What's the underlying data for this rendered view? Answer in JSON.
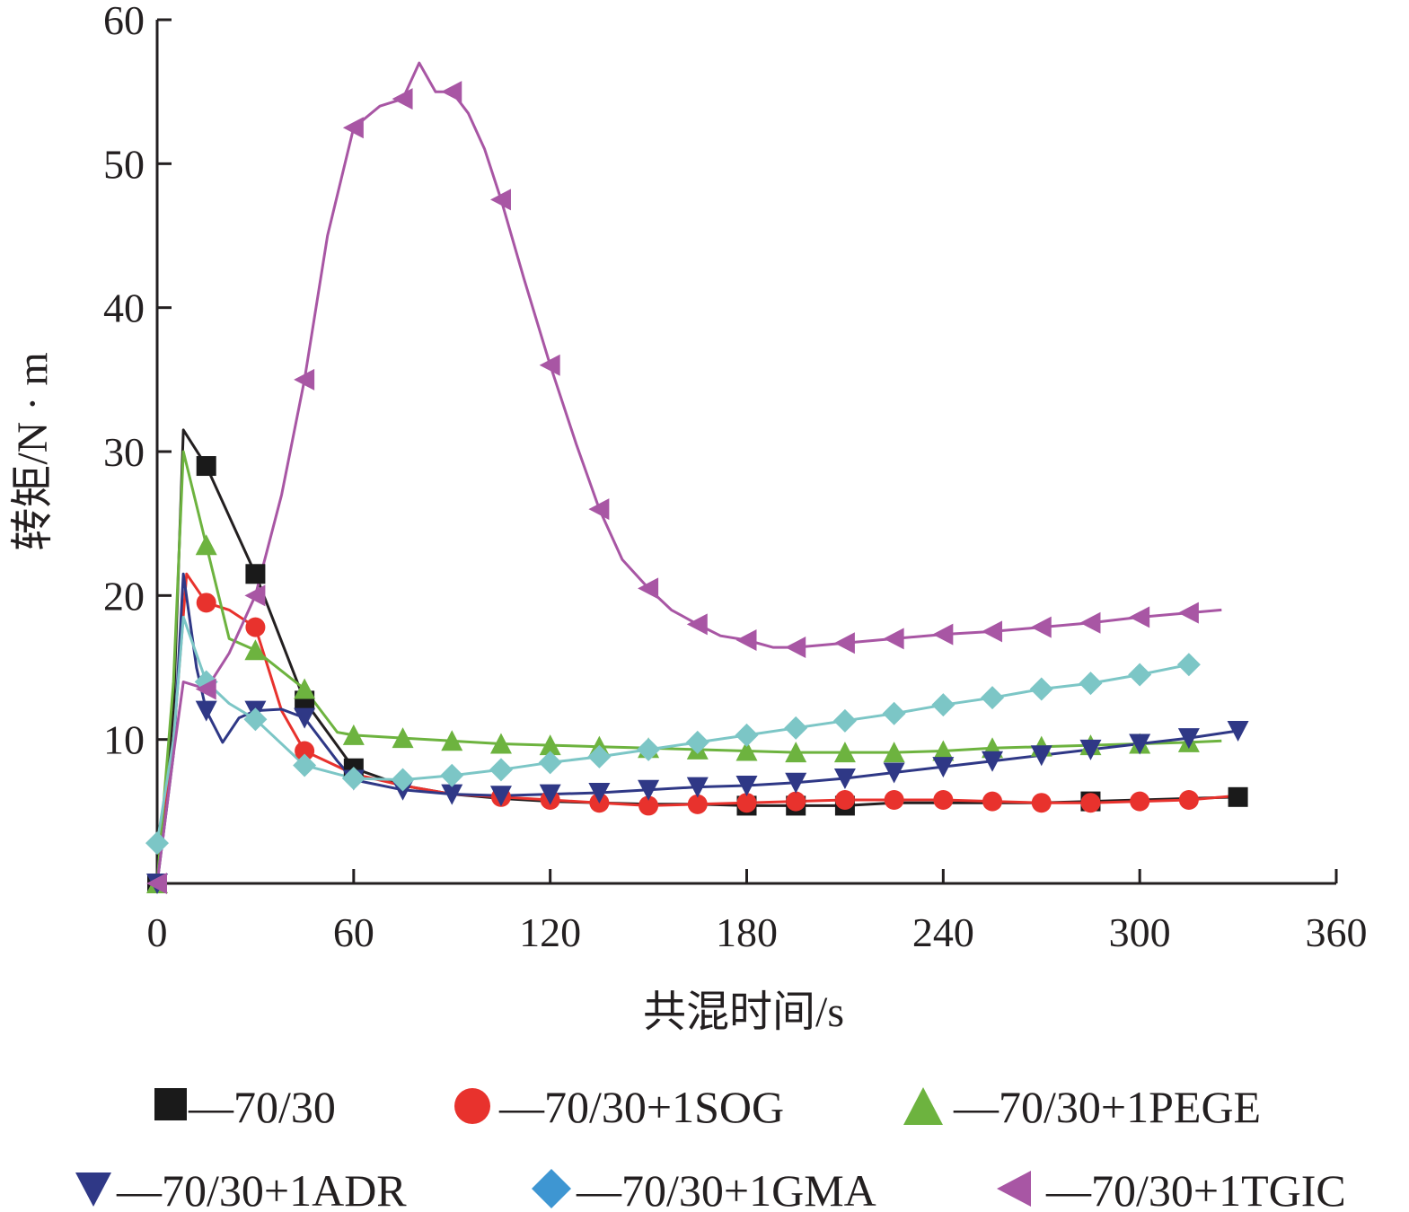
{
  "chart_data": {
    "type": "line",
    "title": "",
    "xlabel": "共混时间/s",
    "ylabel": "转矩/N · m",
    "xlim": [
      0,
      360
    ],
    "ylim": [
      0,
      60
    ],
    "xticks": [
      0,
      60,
      120,
      180,
      240,
      300,
      360
    ],
    "yticks": [
      10,
      20,
      30,
      40,
      50,
      60
    ],
    "x_tick_labels": [
      "0",
      "60",
      "120",
      "180",
      "240",
      "300",
      "360"
    ],
    "y_tick_labels": [
      "10",
      "20",
      "30",
      "40",
      "50",
      "60"
    ],
    "grid": false,
    "legend_position": "bottom",
    "series": [
      {
        "name": "70/30",
        "color": "#231f20",
        "marker": "square",
        "marker_color": "#1a1a1a",
        "points": [
          [
            0,
            0
          ],
          [
            5,
            12
          ],
          [
            8,
            31.5
          ],
          [
            15,
            29
          ],
          [
            30,
            21.5
          ],
          [
            45,
            12.7
          ],
          [
            60,
            8
          ],
          [
            75,
            6.8
          ],
          [
            90,
            6.2
          ],
          [
            105,
            5.9
          ],
          [
            120,
            5.7
          ],
          [
            135,
            5.6
          ],
          [
            150,
            5.5
          ],
          [
            165,
            5.5
          ],
          [
            180,
            5.4
          ],
          [
            195,
            5.4
          ],
          [
            210,
            5.4
          ],
          [
            225,
            5.6
          ],
          [
            240,
            5.6
          ],
          [
            255,
            5.6
          ],
          [
            270,
            5.6
          ],
          [
            285,
            5.7
          ],
          [
            300,
            5.8
          ],
          [
            315,
            5.9
          ],
          [
            330,
            6.0
          ]
        ],
        "markers": [
          [
            0,
            0
          ],
          [
            15,
            29
          ],
          [
            30,
            21.5
          ],
          [
            45,
            12.7
          ],
          [
            60,
            8
          ],
          [
            180,
            5.4
          ],
          [
            195,
            5.4
          ],
          [
            210,
            5.4
          ],
          [
            285,
            5.7
          ],
          [
            330,
            6.0
          ]
        ]
      },
      {
        "name": "70/30+1SOG",
        "color": "#e8322d",
        "marker": "circle",
        "marker_color": "#e8322d",
        "points": [
          [
            0,
            0
          ],
          [
            5,
            10
          ],
          [
            9,
            21.5
          ],
          [
            15,
            19.5
          ],
          [
            22,
            19
          ],
          [
            30,
            17.8
          ],
          [
            38,
            12
          ],
          [
            45,
            9.2
          ],
          [
            60,
            7.6
          ],
          [
            75,
            6.8
          ],
          [
            90,
            6.2
          ],
          [
            105,
            6.0
          ],
          [
            120,
            5.8
          ],
          [
            135,
            5.6
          ],
          [
            150,
            5.4
          ],
          [
            165,
            5.5
          ],
          [
            180,
            5.6
          ],
          [
            195,
            5.7
          ],
          [
            210,
            5.8
          ],
          [
            225,
            5.8
          ],
          [
            240,
            5.8
          ],
          [
            255,
            5.7
          ],
          [
            270,
            5.6
          ],
          [
            285,
            5.6
          ],
          [
            300,
            5.7
          ],
          [
            315,
            5.8
          ],
          [
            330,
            6.1
          ]
        ],
        "markers": [
          [
            15,
            19.5
          ],
          [
            30,
            17.8
          ],
          [
            45,
            9.2
          ],
          [
            105,
            6.0
          ],
          [
            120,
            5.8
          ],
          [
            135,
            5.6
          ],
          [
            150,
            5.4
          ],
          [
            165,
            5.5
          ],
          [
            180,
            5.6
          ],
          [
            195,
            5.7
          ],
          [
            210,
            5.8
          ],
          [
            225,
            5.8
          ],
          [
            240,
            5.8
          ],
          [
            255,
            5.7
          ],
          [
            270,
            5.6
          ],
          [
            285,
            5.6
          ],
          [
            300,
            5.7
          ],
          [
            315,
            5.8
          ]
        ]
      },
      {
        "name": "70/30+1PEGE",
        "color": "#6db33f",
        "marker": "triangle-up",
        "marker_color": "#6db33f",
        "points": [
          [
            0,
            0
          ],
          [
            5,
            14
          ],
          [
            8,
            30
          ],
          [
            15,
            23.5
          ],
          [
            22,
            17
          ],
          [
            30,
            16.2
          ],
          [
            45,
            13.5
          ],
          [
            55,
            10.5
          ],
          [
            60,
            10.3
          ],
          [
            75,
            10.1
          ],
          [
            90,
            9.9
          ],
          [
            105,
            9.7
          ],
          [
            120,
            9.6
          ],
          [
            135,
            9.5
          ],
          [
            150,
            9.4
          ],
          [
            165,
            9.3
          ],
          [
            180,
            9.2
          ],
          [
            195,
            9.1
          ],
          [
            210,
            9.1
          ],
          [
            225,
            9.1
          ],
          [
            240,
            9.2
          ],
          [
            255,
            9.4
          ],
          [
            270,
            9.5
          ],
          [
            285,
            9.6
          ],
          [
            300,
            9.7
          ],
          [
            315,
            9.8
          ],
          [
            325,
            9.9
          ]
        ],
        "markers": [
          [
            0,
            0
          ],
          [
            15,
            23.5
          ],
          [
            30,
            16.2
          ],
          [
            45,
            13.5
          ],
          [
            60,
            10.3
          ],
          [
            75,
            10.1
          ],
          [
            90,
            9.9
          ],
          [
            105,
            9.7
          ],
          [
            120,
            9.6
          ],
          [
            135,
            9.5
          ],
          [
            150,
            9.4
          ],
          [
            165,
            9.3
          ],
          [
            180,
            9.2
          ],
          [
            195,
            9.1
          ],
          [
            210,
            9.1
          ],
          [
            225,
            9.1
          ],
          [
            240,
            9.2
          ],
          [
            255,
            9.4
          ],
          [
            270,
            9.5
          ],
          [
            285,
            9.6
          ],
          [
            300,
            9.7
          ],
          [
            315,
            9.8
          ]
        ]
      },
      {
        "name": "70/30+1ADR",
        "color": "#2f3886",
        "marker": "triangle-down",
        "marker_color": "#2f3886",
        "points": [
          [
            0,
            0
          ],
          [
            5,
            9
          ],
          [
            8,
            21.5
          ],
          [
            12,
            15
          ],
          [
            15,
            12
          ],
          [
            20,
            9.8
          ],
          [
            25,
            11.5
          ],
          [
            30,
            12
          ],
          [
            38,
            12.1
          ],
          [
            45,
            11.5
          ],
          [
            55,
            8.5
          ],
          [
            60,
            7.2
          ],
          [
            75,
            6.5
          ],
          [
            90,
            6.2
          ],
          [
            105,
            6.1
          ],
          [
            120,
            6.2
          ],
          [
            135,
            6.3
          ],
          [
            150,
            6.5
          ],
          [
            165,
            6.7
          ],
          [
            180,
            6.8
          ],
          [
            195,
            7.0
          ],
          [
            210,
            7.3
          ],
          [
            225,
            7.7
          ],
          [
            240,
            8.1
          ],
          [
            255,
            8.5
          ],
          [
            270,
            8.9
          ],
          [
            285,
            9.3
          ],
          [
            300,
            9.7
          ],
          [
            315,
            10.1
          ],
          [
            330,
            10.6
          ]
        ],
        "markers": [
          [
            0,
            0
          ],
          [
            15,
            12
          ],
          [
            30,
            12
          ],
          [
            45,
            11.5
          ],
          [
            60,
            7.2
          ],
          [
            75,
            6.5
          ],
          [
            90,
            6.2
          ],
          [
            105,
            6.1
          ],
          [
            120,
            6.2
          ],
          [
            135,
            6.3
          ],
          [
            150,
            6.5
          ],
          [
            165,
            6.7
          ],
          [
            180,
            6.8
          ],
          [
            195,
            7.0
          ],
          [
            210,
            7.3
          ],
          [
            225,
            7.7
          ],
          [
            240,
            8.1
          ],
          [
            255,
            8.5
          ],
          [
            270,
            8.9
          ],
          [
            285,
            9.3
          ],
          [
            300,
            9.7
          ],
          [
            315,
            10.1
          ],
          [
            330,
            10.6
          ]
        ]
      },
      {
        "name": "70/30+1GMA",
        "color": "#7cc6c6",
        "marker": "diamond",
        "marker_color": "#7cc6c6",
        "marker_legend_color": "#3e96d2",
        "points": [
          [
            0,
            2.8
          ],
          [
            5,
            10
          ],
          [
            8,
            18.5
          ],
          [
            15,
            14
          ],
          [
            22,
            12.5
          ],
          [
            30,
            11.4
          ],
          [
            45,
            8.2
          ],
          [
            60,
            7.3
          ],
          [
            75,
            7.2
          ],
          [
            90,
            7.5
          ],
          [
            105,
            7.9
          ],
          [
            120,
            8.4
          ],
          [
            135,
            8.8
          ],
          [
            150,
            9.3
          ],
          [
            165,
            9.8
          ],
          [
            180,
            10.3
          ],
          [
            195,
            10.8
          ],
          [
            210,
            11.3
          ],
          [
            225,
            11.8
          ],
          [
            240,
            12.4
          ],
          [
            255,
            12.9
          ],
          [
            270,
            13.5
          ],
          [
            285,
            13.9
          ],
          [
            300,
            14.5
          ],
          [
            315,
            15.2
          ]
        ],
        "markers": [
          [
            0,
            2.8
          ],
          [
            15,
            14
          ],
          [
            30,
            11.4
          ],
          [
            45,
            8.2
          ],
          [
            60,
            7.3
          ],
          [
            75,
            7.2
          ],
          [
            90,
            7.5
          ],
          [
            105,
            7.9
          ],
          [
            120,
            8.4
          ],
          [
            135,
            8.8
          ],
          [
            150,
            9.3
          ],
          [
            165,
            9.8
          ],
          [
            180,
            10.3
          ],
          [
            195,
            10.8
          ],
          [
            210,
            11.3
          ],
          [
            225,
            11.8
          ],
          [
            240,
            12.4
          ],
          [
            255,
            12.9
          ],
          [
            270,
            13.5
          ],
          [
            285,
            13.9
          ],
          [
            300,
            14.5
          ],
          [
            315,
            15.2
          ]
        ]
      },
      {
        "name": "70/30+1TGIC",
        "color": "#a856a4",
        "marker": "triangle-left",
        "marker_color": "#a856a4",
        "points": [
          [
            0,
            0
          ],
          [
            5,
            9
          ],
          [
            8,
            14
          ],
          [
            15,
            13.5
          ],
          [
            22,
            16
          ],
          [
            30,
            20
          ],
          [
            38,
            27
          ],
          [
            45,
            35
          ],
          [
            52,
            45
          ],
          [
            60,
            52.5
          ],
          [
            68,
            54
          ],
          [
            75,
            54.5
          ],
          [
            80,
            57
          ],
          [
            85,
            55
          ],
          [
            90,
            55
          ],
          [
            95,
            53.5
          ],
          [
            100,
            51
          ],
          [
            105,
            47.5
          ],
          [
            112,
            42
          ],
          [
            120,
            36
          ],
          [
            128,
            30.5
          ],
          [
            135,
            26
          ],
          [
            142,
            22.5
          ],
          [
            150,
            20.5
          ],
          [
            157,
            19
          ],
          [
            165,
            18
          ],
          [
            172,
            17.2
          ],
          [
            180,
            16.9
          ],
          [
            188,
            16.4
          ],
          [
            195,
            16.4
          ],
          [
            210,
            16.7
          ],
          [
            225,
            17.0
          ],
          [
            240,
            17.3
          ],
          [
            255,
            17.5
          ],
          [
            270,
            17.8
          ],
          [
            285,
            18.1
          ],
          [
            300,
            18.5
          ],
          [
            315,
            18.8
          ],
          [
            325,
            19
          ]
        ],
        "markers": [
          [
            0,
            0
          ],
          [
            15,
            13.5
          ],
          [
            30,
            20
          ],
          [
            45,
            35
          ],
          [
            60,
            52.5
          ],
          [
            75,
            54.5
          ],
          [
            90,
            55
          ],
          [
            105,
            47.5
          ],
          [
            120,
            36
          ],
          [
            135,
            26
          ],
          [
            150,
            20.5
          ],
          [
            165,
            18
          ],
          [
            180,
            16.9
          ],
          [
            195,
            16.4
          ],
          [
            210,
            16.7
          ],
          [
            225,
            17.0
          ],
          [
            240,
            17.3
          ],
          [
            255,
            17.5
          ],
          [
            270,
            17.8
          ],
          [
            285,
            18.1
          ],
          [
            300,
            18.5
          ],
          [
            315,
            18.8
          ]
        ]
      }
    ]
  },
  "legend": {
    "items": [
      {
        "label": "—70/30",
        "color": "#1a1a1a"
      },
      {
        "label": "—70/30+1SOG",
        "color": "#e8322d"
      },
      {
        "label": "—70/30+1PEGE",
        "color": "#6db33f"
      },
      {
        "label": "—70/30+1ADR",
        "color": "#2f3886"
      },
      {
        "label": "—70/30+1GMA",
        "color": "#3e96d2"
      },
      {
        "label": "—70/30+1TGIC",
        "color": "#a856a4"
      }
    ]
  }
}
